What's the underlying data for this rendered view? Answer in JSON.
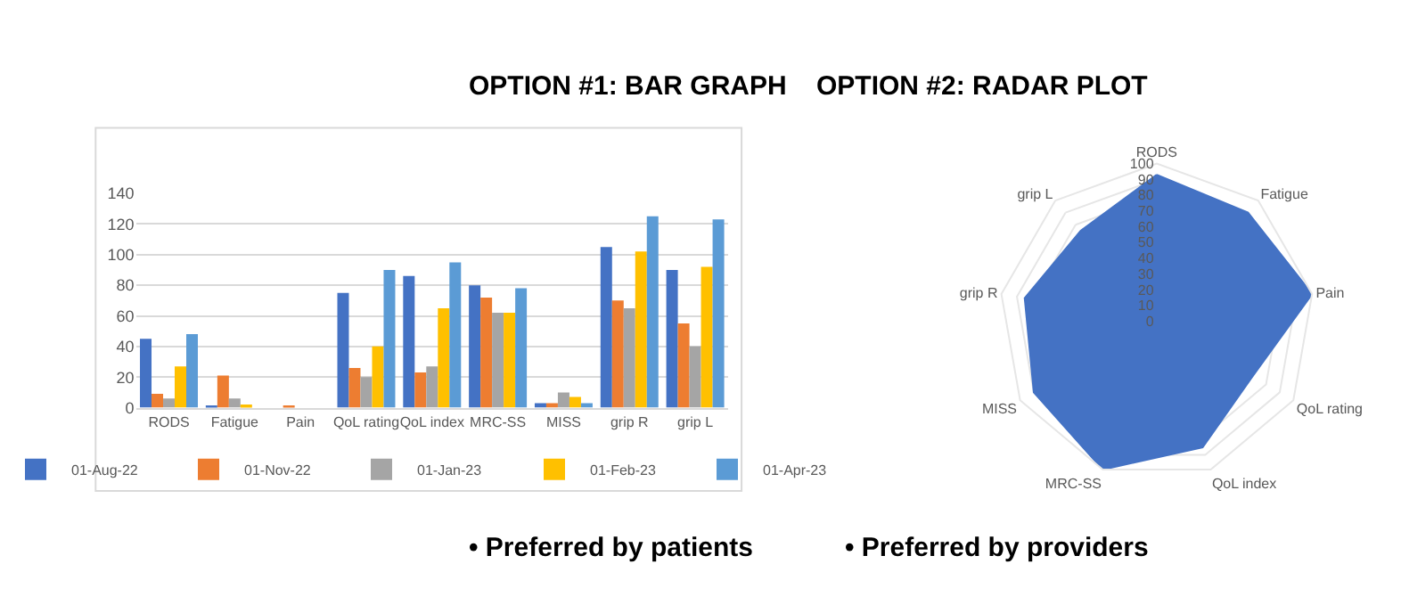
{
  "chart_data": [
    {
      "type": "bar",
      "title": "OPTION #1: BAR GRAPH",
      "annotations": [
        "• Preferred by patients"
      ],
      "categories": [
        "RODS",
        "Fatigue",
        "Pain",
        "QoL rating",
        "QoL index",
        "MRC-SS",
        "MISS",
        "grip R",
        "grip L"
      ],
      "series": [
        {
          "name": "01-Aug-22",
          "color": "#4472c4",
          "values": [
            45,
            1,
            0,
            75,
            86,
            80,
            3,
            105,
            90
          ]
        },
        {
          "name": "01-Nov-22",
          "color": "#ed7d31",
          "values": [
            9,
            21,
            1,
            26,
            23,
            72,
            3,
            70,
            55
          ]
        },
        {
          "name": "01-Jan-23",
          "color": "#a5a5a5",
          "values": [
            6,
            6,
            0,
            20,
            27,
            62,
            10,
            65,
            40
          ]
        },
        {
          "name": "01-Feb-23",
          "color": "#ffc000",
          "values": [
            27,
            2,
            0,
            40,
            65,
            62,
            7,
            102,
            92
          ]
        },
        {
          "name": "01-Apr-23",
          "color": "#5b9bd5",
          "values": [
            48,
            0,
            0,
            90,
            95,
            78,
            3,
            125,
            123
          ]
        }
      ],
      "ylim": [
        0,
        140
      ],
      "yticks": [
        0,
        20,
        40,
        60,
        80,
        100,
        120,
        140
      ],
      "grid": "y",
      "legend": "bottom"
    },
    {
      "type": "radar",
      "title": "OPTION #2: RADAR PLOT",
      "annotations": [
        "• Preferred by providers"
      ],
      "categories": [
        "RODS",
        "Fatigue",
        "Pain",
        "QoL rating",
        "QoL index",
        "MRC-SS",
        "MISS",
        "grip R",
        "grip L"
      ],
      "series": [
        {
          "color": "#4472c4",
          "values": [
            93,
            90,
            100,
            70,
            85,
            100,
            90,
            85,
            75
          ]
        }
      ],
      "ylim": [
        0,
        100
      ],
      "yticks": [
        0,
        10,
        20,
        30,
        40,
        50,
        60,
        70,
        80,
        90,
        100
      ],
      "grid": true
    }
  ]
}
